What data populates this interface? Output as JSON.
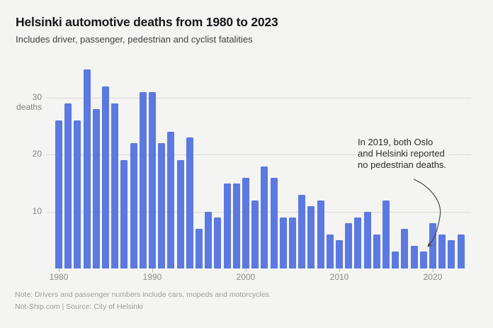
{
  "chart_data": {
    "type": "bar",
    "title": "Helsinki automotive deaths from 1980 to 2023",
    "subtitle": "Includes driver, passenger, pedestrian and cyclist fatalities",
    "categories": [
      1980,
      1981,
      1982,
      1983,
      1984,
      1985,
      1986,
      1987,
      1988,
      1989,
      1990,
      1991,
      1992,
      1993,
      1994,
      1995,
      1996,
      1997,
      1998,
      1999,
      2000,
      2001,
      2002,
      2003,
      2004,
      2005,
      2006,
      2007,
      2008,
      2009,
      2010,
      2011,
      2012,
      2013,
      2014,
      2015,
      2016,
      2017,
      2018,
      2019,
      2020,
      2021,
      2022,
      2023
    ],
    "values": [
      26,
      29,
      26,
      35,
      28,
      32,
      29,
      19,
      22,
      31,
      31,
      22,
      24,
      19,
      23,
      7,
      10,
      9,
      15,
      15,
      16,
      12,
      18,
      16,
      9,
      9,
      13,
      11,
      12,
      6,
      5,
      8,
      9,
      10,
      6,
      12,
      3,
      7,
      4,
      3,
      8,
      6,
      5,
      6
    ],
    "xlabel": "",
    "ylabel": "deaths",
    "ylim": [
      0,
      36
    ],
    "yticks": [
      10,
      20,
      30
    ],
    "xticks": [
      1980,
      1990,
      2000,
      2010,
      2020
    ],
    "grid": true,
    "legend": "none",
    "annotation": {
      "lines": [
        "In 2019, both Oslo",
        "and Helsinki reported",
        "no pedestrian deaths."
      ],
      "target_year": 2019,
      "target_value": 3
    }
  },
  "colors": {
    "background": "#f4f4f2",
    "bar": "#5b79e0",
    "gridline": "#dbdbd9",
    "arrow": "#4b4b4b"
  },
  "footer": {
    "note": "Note: Drivers and passenger numbers include cars, mopeds and motorcycles.",
    "source": "Not-Ship.com | Source: City of Helsinki"
  }
}
